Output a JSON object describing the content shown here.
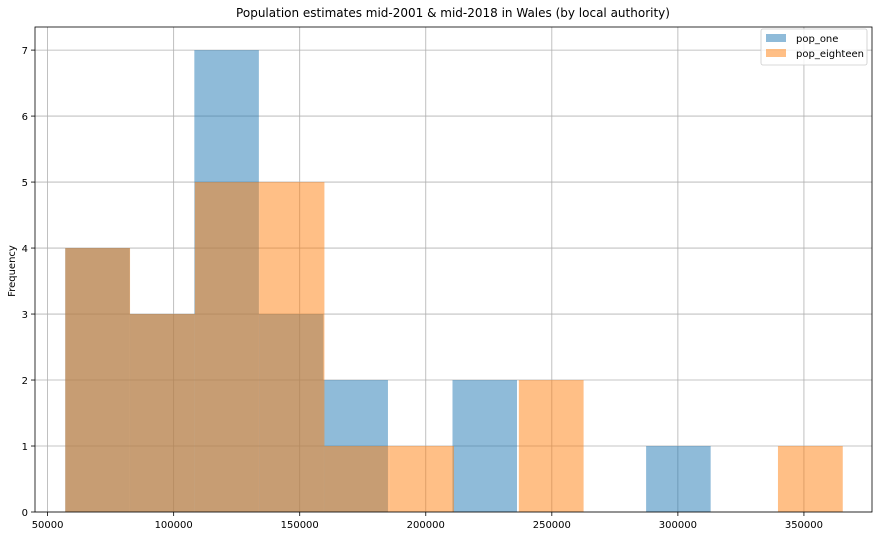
{
  "chart_data": {
    "type": "bar",
    "title": "Population estimates mid-2001 & mid-2018 in Wales (by local authority)",
    "xlabel": "",
    "ylabel": "Frequency",
    "xlim": [
      45000,
      377000
    ],
    "ylim": [
      0,
      7.35
    ],
    "xticks": [
      50000,
      100000,
      150000,
      200000,
      250000,
      300000,
      350000
    ],
    "yticks": [
      0,
      1,
      2,
      3,
      4,
      5,
      6,
      7
    ],
    "grid": true,
    "legend_position": "top-right",
    "series": [
      {
        "name": "pop_one",
        "color": "#1f77b4",
        "bins": [
          {
            "x0": 57000,
            "x1": 82600,
            "count": 4
          },
          {
            "x0": 82600,
            "x1": 108200,
            "count": 3
          },
          {
            "x0": 108200,
            "x1": 133800,
            "count": 7
          },
          {
            "x0": 133800,
            "x1": 159400,
            "count": 3
          },
          {
            "x0": 159400,
            "x1": 185000,
            "count": 2
          },
          {
            "x0": 185000,
            "x1": 210600,
            "count": 0
          },
          {
            "x0": 210600,
            "x1": 236200,
            "count": 2
          },
          {
            "x0": 236200,
            "x1": 261800,
            "count": 0
          },
          {
            "x0": 261800,
            "x1": 287400,
            "count": 0
          },
          {
            "x0": 287400,
            "x1": 313000,
            "count": 1
          }
        ]
      },
      {
        "name": "pop_eighteen",
        "color": "#ff7f0e",
        "bins": [
          {
            "x0": 57000,
            "x1": 82700,
            "count": 4
          },
          {
            "x0": 82700,
            "x1": 108400,
            "count": 3
          },
          {
            "x0": 108400,
            "x1": 134100,
            "count": 5
          },
          {
            "x0": 134100,
            "x1": 159800,
            "count": 5
          },
          {
            "x0": 159800,
            "x1": 185500,
            "count": 1
          },
          {
            "x0": 185500,
            "x1": 211200,
            "count": 1
          },
          {
            "x0": 211200,
            "x1": 236900,
            "count": 0
          },
          {
            "x0": 236900,
            "x1": 262600,
            "count": 2
          },
          {
            "x0": 262600,
            "x1": 288300,
            "count": 0
          },
          {
            "x0": 288300,
            "x1": 314000,
            "count": 0
          },
          {
            "x0": 314000,
            "x1": 339700,
            "count": 0
          },
          {
            "x0": 339700,
            "x1": 365400,
            "count": 1
          }
        ]
      }
    ]
  }
}
